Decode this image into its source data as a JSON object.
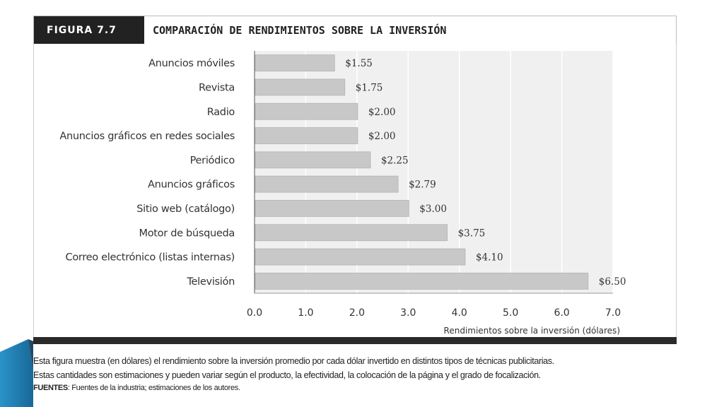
{
  "figure": {
    "label": "FIGURA 7.7",
    "title": "COMPARACIÓN DE RENDIMIENTOS SOBRE LA INVERSIÓN"
  },
  "chart_data": {
    "type": "bar",
    "orientation": "horizontal",
    "categories": [
      "Anuncios móviles",
      "Revista",
      "Radio",
      "Anuncios gráficos en redes sociales",
      "Periódico",
      "Anuncios gráficos",
      "Sitio web (catálogo)",
      "Motor de búsqueda",
      "Correo electrónico (listas internas)",
      "Televisión"
    ],
    "values": [
      1.55,
      1.75,
      2.0,
      2.0,
      2.25,
      2.79,
      3.0,
      3.75,
      4.1,
      6.5
    ],
    "value_labels": [
      "$1.55",
      "$1.75",
      "$2.00",
      "$2.00",
      "$2.25",
      "$2.79",
      "$3.00",
      "$3.75",
      "$4.10",
      "$6.50"
    ],
    "xlim": [
      0,
      7
    ],
    "xticks": [
      0,
      1,
      2,
      3,
      4,
      5,
      6,
      7
    ],
    "xtick_labels": [
      "0.0",
      "1.0",
      "2.0",
      "3.0",
      "4.0",
      "5.0",
      "6.0",
      "7.0"
    ],
    "xlabel": "Rendimientos sobre la inversión (dólares)",
    "ylabel": "",
    "grid": true,
    "bar_color": "#c8c8c8",
    "plot_background": "#f0f0f0"
  },
  "caption": {
    "line1": "Esta figura muestra (en dólares) el rendimiento sobre la inversión promedio por cada dólar invertido en distintos tipos de técnicas publicitarias.",
    "line2": "Estas cantidades son estimaciones y pueden variar según el producto, la efectividad, la colocación de la página y el grado de focalización.",
    "sources_label": "FUENTES",
    "sources_text": ": Fuentes de la industria; estimaciones de los autores."
  },
  "theme": {
    "slide_accent": "#1f7bb8",
    "slide_accent_dark": "#163f5e",
    "header_dark": "#222222"
  }
}
